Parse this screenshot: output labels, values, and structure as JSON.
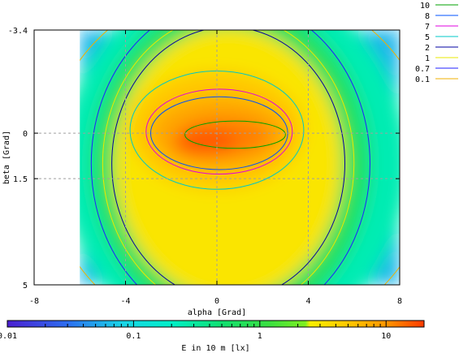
{
  "chart_data": {
    "type": "heatmap",
    "title": "",
    "xlabel": "alpha [Grad]",
    "ylabel": "beta [Grad]",
    "xlim": [
      -8,
      8
    ],
    "ylim": [
      -3.4,
      5
    ],
    "y_axis_inverted": true,
    "x_ticks": [
      -8,
      -4,
      0,
      4,
      8
    ],
    "x_tick_labels": [
      "-8",
      "-4",
      "0",
      "4",
      "8"
    ],
    "y_ticks": [
      -3.4,
      0,
      1.5,
      5
    ],
    "y_tick_labels": [
      "-3.4",
      "0",
      "1.5",
      "5"
    ],
    "grid": true,
    "colorbar": {
      "label": "E in 10 m [lx]",
      "scale": "log",
      "range": [
        0.01,
        20
      ],
      "tick_labels": [
        {
          "value": 0.01,
          "label": "0.01"
        },
        {
          "value": 0.1,
          "label": "0.1"
        },
        {
          "value": 1,
          "label": "1"
        },
        {
          "value": 10,
          "label": "10"
        }
      ],
      "stops": [
        {
          "value": 0.01,
          "color": "#4b1fd1"
        },
        {
          "value": 0.03,
          "color": "#2c6ef0"
        },
        {
          "value": 0.08,
          "color": "#19d4e8"
        },
        {
          "value": 0.2,
          "color": "#00f0c8"
        },
        {
          "value": 0.5,
          "color": "#10e070"
        },
        {
          "value": 1.2,
          "color": "#3ce040"
        },
        {
          "value": 2.3,
          "color": "#7ef020"
        },
        {
          "value": 2.5,
          "color": "#f8f000"
        },
        {
          "value": 5,
          "color": "#ffc800"
        },
        {
          "value": 10,
          "color": "#ff9600"
        },
        {
          "value": 20,
          "color": "#ff3a00"
        }
      ]
    },
    "data_extent": {
      "x": [
        -6,
        8
      ],
      "y": [
        -3.4,
        5
      ]
    },
    "peak": {
      "x": -0.5,
      "y": 0.3,
      "value": 16
    },
    "contours": [
      {
        "level": 10,
        "label": "10",
        "color": "#00a000",
        "cx": 0.8,
        "cy": 0.05,
        "rx": 2.2,
        "ry": 0.45
      },
      {
        "level": 8,
        "label": "8",
        "color": "#0050ff",
        "cx": 0.1,
        "cy": 0.0,
        "rx": 3.0,
        "ry": 1.2
      },
      {
        "level": 7,
        "label": "7",
        "color": "#e000e0",
        "cx": 0.1,
        "cy": -0.05,
        "rx": 3.2,
        "ry": 1.4
      },
      {
        "level": 5,
        "label": "5",
        "color": "#00c8c8",
        "cx": 0.0,
        "cy": -0.1,
        "rx": 3.8,
        "ry": 1.95
      },
      {
        "level": 2,
        "label": "2",
        "color": "#0000a0",
        "cx": 0.5,
        "cy": 1.0,
        "rx": 5.1,
        "ry": 4.5
      },
      {
        "level": 1,
        "label": "1",
        "color": "#e8e800",
        "cx": 0.5,
        "cy": 1.0,
        "rx": 5.5,
        "ry": 4.9
      },
      {
        "level": 0.7,
        "label": "0.7",
        "color": "#2020ff",
        "cx": 0.6,
        "cy": 1.0,
        "rx": 6.1,
        "ry": 5.4
      },
      {
        "level": 0.1,
        "label": "0.1",
        "color": "#f0b000",
        "cx": 1.0,
        "cy": 1.0,
        "rx": 8.5,
        "ry": 6.0
      }
    ],
    "legend_position": "top-right"
  }
}
